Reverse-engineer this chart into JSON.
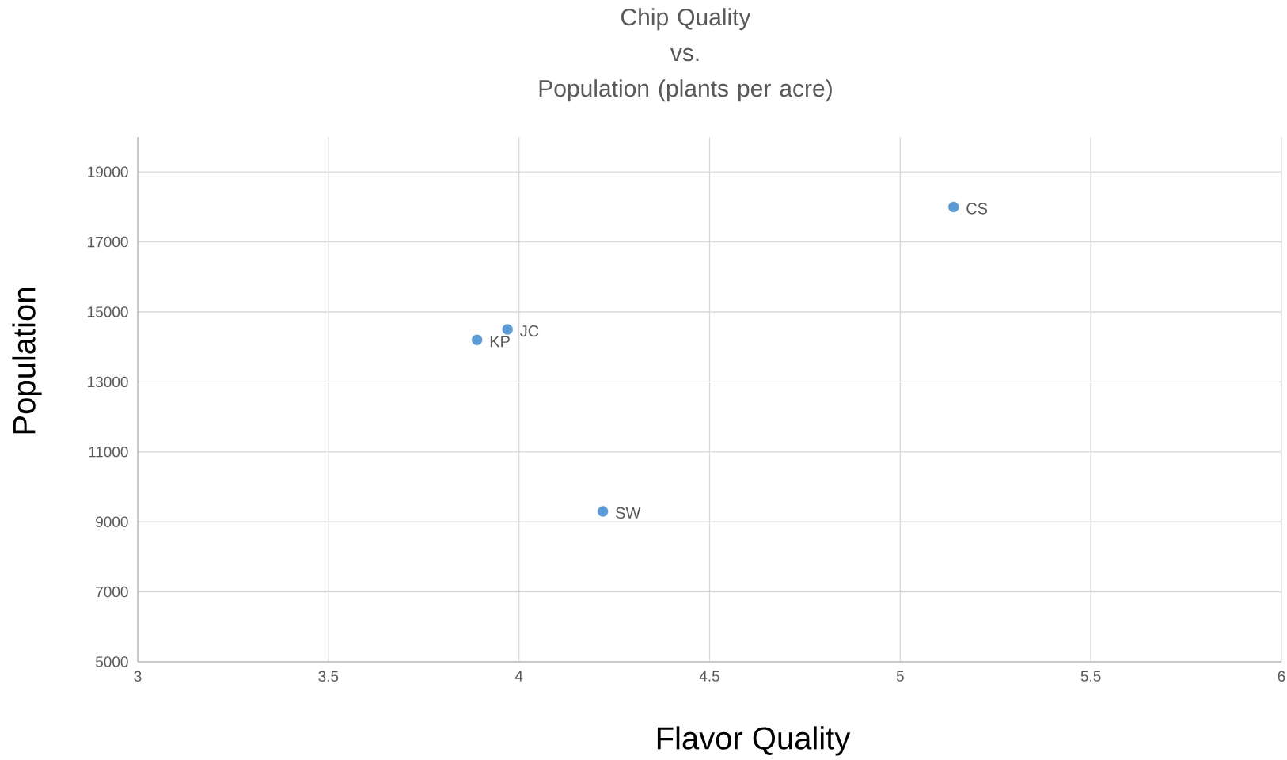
{
  "chart_data": {
    "type": "scatter",
    "title": "Chip Quality vs. Population (plants per acre)",
    "xlabel": "Flavor Quality",
    "ylabel": "Population",
    "x": [
      5.14,
      3.97,
      3.89,
      4.22
    ],
    "values": [
      18000,
      14500,
      14200,
      9300
    ],
    "color": "#5b9bd5",
    "marker": "circle",
    "xlim": [
      3,
      6
    ],
    "xticks": [
      3,
      3.5,
      4,
      4.5,
      5,
      5.5,
      6
    ],
    "ylim": [
      5000,
      20000
    ],
    "yticks": [
      5000,
      7000,
      9000,
      11000,
      13000,
      15000,
      17000,
      19000
    ],
    "grid": true,
    "annotations": [
      {
        "text": "CS",
        "x": 5.14,
        "y": 18000
      },
      {
        "text": "JC",
        "x": 3.97,
        "y": 14500
      },
      {
        "text": "KP",
        "x": 3.89,
        "y": 14200
      },
      {
        "text": "SW",
        "x": 4.22,
        "y": 9300
      }
    ]
  }
}
